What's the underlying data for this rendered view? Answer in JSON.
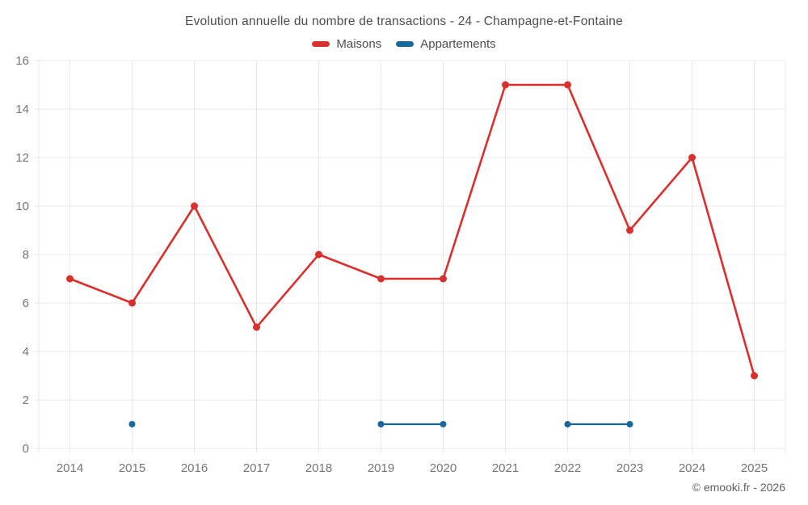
{
  "page": {
    "title": "Evolution annuelle du nombre de transactions - 24 - Champagne-et-Fontaine",
    "copyright": "© emooki.fr - 2026"
  },
  "chart_data": {
    "type": "line",
    "title": "Evolution annuelle du nombre de transactions - 24 - Champagne-et-Fontaine",
    "x": [
      "2014",
      "2015",
      "2016",
      "2017",
      "2018",
      "2019",
      "2020",
      "2021",
      "2022",
      "2023",
      "2024",
      "2025"
    ],
    "series": [
      {
        "name": "Maisons",
        "color": "#d9302e",
        "values": [
          7,
          6,
          10,
          5,
          8,
          7,
          7,
          15,
          15,
          9,
          12,
          3
        ]
      },
      {
        "name": "Appartements",
        "color": "#17699c",
        "values": [
          null,
          1,
          null,
          null,
          null,
          1,
          1,
          null,
          1,
          1,
          null,
          null
        ]
      }
    ],
    "ylim": [
      0,
      16
    ],
    "ytick_step": 2,
    "grid": true,
    "legend_position": "top",
    "xlabel": "",
    "ylabel": ""
  },
  "style": {
    "background": "#ffffff",
    "grid_color": "#e8e8e8",
    "tick_label_color": "#757575",
    "title_color": "#4e4e4e",
    "copyright_color": "#606060"
  }
}
